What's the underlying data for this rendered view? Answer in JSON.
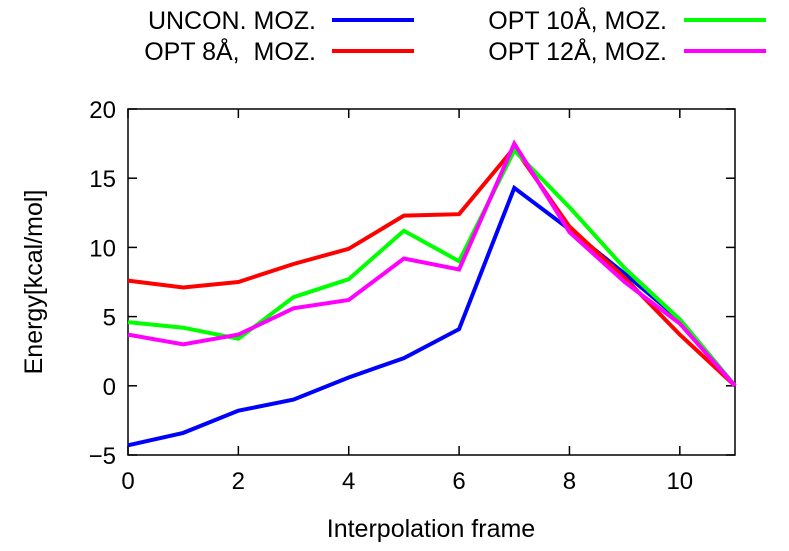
{
  "chart_data": {
    "type": "line",
    "title": "",
    "xlabel": "Interpolation frame",
    "ylabel": "Energy[kcal/mol]",
    "xlim": [
      0,
      11
    ],
    "ylim": [
      -5,
      20
    ],
    "xticks": [
      0,
      2,
      4,
      6,
      8,
      10
    ],
    "yticks": [
      -5,
      0,
      5,
      10,
      15,
      20
    ],
    "xtick_labels": [
      "0",
      "2",
      "4",
      "6",
      "8",
      "10"
    ],
    "ytick_labels": [
      "−5",
      "0",
      "5",
      "10",
      "15",
      "20"
    ],
    "grid": false,
    "legend_position": "top",
    "x": [
      0,
      1,
      2,
      3,
      4,
      5,
      6,
      7,
      8,
      9,
      10,
      11
    ],
    "series": [
      {
        "name": "UNCON. MOZ.",
        "color": "#0000ff",
        "values": [
          -4.3,
          -3.4,
          -1.8,
          -1.0,
          0.6,
          2.0,
          4.1,
          14.3,
          11.3,
          8.1,
          4.8,
          0.0
        ]
      },
      {
        "name": "OPT 8Å,  MOZ.",
        "color": "#ff0000",
        "values": [
          7.6,
          7.1,
          7.5,
          8.8,
          9.9,
          12.3,
          12.4,
          17.2,
          11.5,
          7.8,
          3.7,
          0.0
        ]
      },
      {
        "name": "OPT 10Å, MOZ.",
        "color": "#00ff00",
        "values": [
          4.6,
          4.2,
          3.4,
          6.4,
          7.7,
          11.2,
          9.0,
          17.0,
          12.9,
          8.5,
          4.8,
          0.0
        ]
      },
      {
        "name": "OPT 12Å, MOZ.",
        "color": "#ff00ff",
        "values": [
          3.7,
          3.0,
          3.7,
          5.6,
          6.2,
          9.2,
          8.4,
          17.5,
          11.1,
          7.5,
          4.5,
          0.0
        ]
      }
    ]
  }
}
